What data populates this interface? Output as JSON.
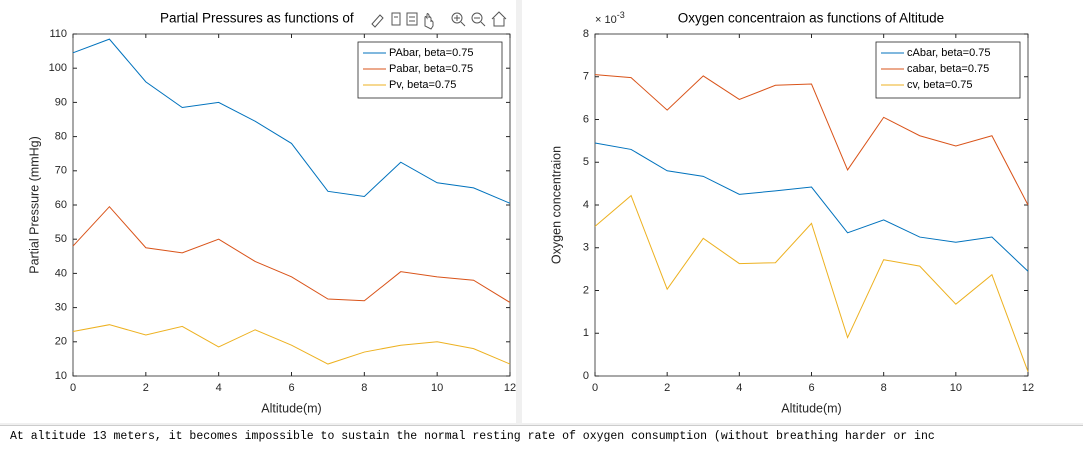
{
  "chart_data": [
    {
      "type": "line",
      "title": "Partial Pressures as functions of",
      "xlabel": "Altitude(m)",
      "ylabel": "Partial Pressure (mmHg)",
      "x": [
        0,
        1,
        2,
        3,
        4,
        5,
        6,
        7,
        8,
        9,
        10,
        11,
        12
      ],
      "xlim": [
        0,
        12
      ],
      "xticks": [
        0,
        2,
        4,
        6,
        8,
        10,
        12
      ],
      "ylim": [
        10,
        110
      ],
      "yticks": [
        10,
        20,
        30,
        40,
        50,
        60,
        70,
        80,
        90,
        100,
        110
      ],
      "legend": "northeast",
      "series": [
        {
          "name": "PAbar, beta=0.75",
          "color": "#0072BD",
          "values": [
            104.5,
            108.5,
            96,
            88.5,
            90,
            84.5,
            78,
            64,
            62.5,
            72.5,
            66.5,
            65,
            60.5
          ]
        },
        {
          "name": "Pabar, beta=0.75",
          "color": "#D95319",
          "values": [
            48,
            59.5,
            47.5,
            46,
            50,
            43.5,
            39,
            32.5,
            32,
            40.5,
            39,
            38,
            31.5
          ]
        },
        {
          "name": "Pv, beta=0.75",
          "color": "#EDB120",
          "values": [
            23,
            25,
            22,
            24.5,
            18.5,
            23.5,
            19,
            13.5,
            17,
            19,
            20,
            18,
            13.5
          ]
        }
      ]
    },
    {
      "type": "line",
      "title": "Oxygen concentraion as functions of Altitude",
      "xlabel": "Altitude(m)",
      "ylabel": "Oxygen concentraion",
      "y_multiplier": {
        "base": "× 10",
        "exponent": "-3"
      },
      "x": [
        0,
        1,
        2,
        3,
        4,
        5,
        6,
        7,
        8,
        9,
        10,
        11,
        12
      ],
      "xlim": [
        0,
        12
      ],
      "xticks": [
        0,
        2,
        4,
        6,
        8,
        10,
        12
      ],
      "ylim": [
        0,
        8
      ],
      "yticks": [
        0,
        1,
        2,
        3,
        4,
        5,
        6,
        7,
        8
      ],
      "legend": "northeast",
      "series": [
        {
          "name": "cAbar, beta=0.75",
          "color": "#0072BD",
          "values": [
            5.45,
            5.3,
            4.8,
            4.67,
            4.25,
            4.33,
            4.42,
            3.35,
            3.65,
            3.25,
            3.13,
            3.25,
            2.45
          ]
        },
        {
          "name": "cabar, beta=0.75",
          "color": "#D95319",
          "values": [
            7.05,
            6.98,
            6.22,
            7.02,
            6.47,
            6.8,
            6.83,
            4.82,
            6.05,
            5.62,
            5.38,
            5.62,
            4.0
          ]
        },
        {
          "name": "cv, beta=0.75",
          "color": "#EDB120",
          "values": [
            3.5,
            4.22,
            2.03,
            3.22,
            2.63,
            2.65,
            3.57,
            0.9,
            2.72,
            2.57,
            1.68,
            2.37,
            0.1
          ]
        }
      ]
    }
  ],
  "console": {
    "line": "At altitude 13 meters, it becomes impossible to sustain the normal resting rate of oxygen consumption (without breathing harder or inc"
  }
}
